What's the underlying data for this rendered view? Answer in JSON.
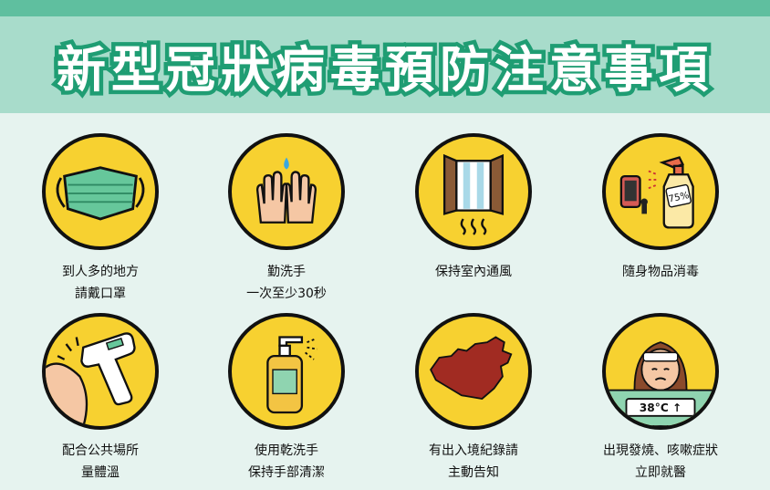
{
  "header": {
    "title": "新型冠狀病毒預防注意事項"
  },
  "items": [
    {
      "icon": "face-mask-icon",
      "line1": "到人多的地方",
      "line2": "請戴口罩"
    },
    {
      "icon": "hand-washing-icon",
      "line1": "勤洗手",
      "line2": "一次至少30秒"
    },
    {
      "icon": "open-window-icon",
      "line1": "保持室內通風",
      "line2": ""
    },
    {
      "icon": "disinfectant-spray-icon",
      "line1": "隨身物品消毒",
      "line2": ""
    },
    {
      "icon": "thermometer-gun-icon",
      "line1": "配合公共場所",
      "line2": "量體溫"
    },
    {
      "icon": "hand-sanitizer-icon",
      "line1": "使用乾洗手",
      "line2": "保持手部清潔"
    },
    {
      "icon": "china-map-icon",
      "line1": "有出入境紀錄請",
      "line2": "主動告知"
    },
    {
      "icon": "sick-person-icon",
      "line1": "出現發燒、咳嗽症狀",
      "line2": "立即就醫"
    }
  ],
  "labels": {
    "spray_percent": "75%",
    "temperature": "38°C ↑"
  },
  "colors": {
    "accent": "#1f9d73",
    "banner": "#a8dccb",
    "background": "#e6f3ef",
    "icon_fill": "#f7d130"
  }
}
